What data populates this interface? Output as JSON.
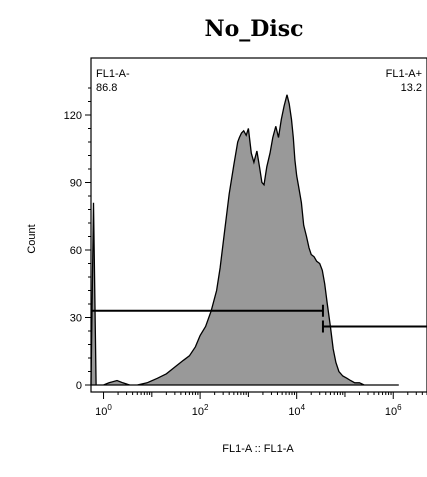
{
  "chart_data": {
    "type": "area",
    "title": "No_Disc",
    "xlabel": "FL1-A :: FL1-A",
    "ylabel": "Count",
    "x_scale": "log",
    "xlim": [
      0.55,
      5000000
    ],
    "ylim": [
      0,
      140
    ],
    "x_ticks": [
      {
        "value": 1,
        "base": "10",
        "exp": "0"
      },
      {
        "value": 100,
        "base": "10",
        "exp": "2"
      },
      {
        "value": 10000,
        "base": "10",
        "exp": "4"
      },
      {
        "value": 1000000,
        "base": "10",
        "exp": "6"
      }
    ],
    "y_ticks": [
      "0",
      "30",
      "60",
      "90",
      "120"
    ],
    "y_tick_values": [
      0,
      30,
      60,
      90,
      120
    ],
    "fill_color": "#999999",
    "histogram": {
      "x": [
        0.55,
        0.62,
        0.7,
        1.0,
        1.3,
        1.9,
        2.5,
        3.5,
        5,
        8,
        13,
        20,
        30,
        45,
        60,
        80,
        100,
        130,
        170,
        220,
        260,
        320,
        400,
        500,
        600,
        650,
        720,
        800,
        900,
        1000,
        1150,
        1300,
        1500,
        1700,
        1900,
        2100,
        2400,
        2800,
        3200,
        3700,
        4200,
        4800,
        5500,
        6300,
        7000,
        7800,
        8500,
        9200,
        10000,
        11000,
        12500,
        14000,
        16000,
        18000,
        20000,
        23000,
        26000,
        30000,
        34000,
        38000,
        43000,
        50000,
        57000,
        65000,
        75000,
        90000,
        110000,
        130000,
        160000,
        200000,
        250000,
        320000,
        400000,
        500000,
        600000,
        700000,
        800000,
        900000,
        1000000,
        1150000,
        1300000
      ],
      "y": [
        0,
        81,
        0,
        0,
        1,
        2,
        1,
        0,
        0,
        1,
        3,
        5,
        8,
        11,
        13,
        17,
        22,
        26,
        33,
        42,
        52,
        68,
        85,
        98,
        108,
        110,
        112,
        113,
        111,
        114,
        103,
        99,
        104,
        97,
        90,
        89,
        97,
        103,
        110,
        115,
        110,
        118,
        124,
        129,
        125,
        118,
        110,
        100,
        93,
        88,
        81,
        71,
        66,
        61,
        58,
        57,
        55,
        54,
        51,
        45,
        36,
        26,
        16,
        10,
        6,
        4,
        3,
        2,
        1,
        1,
        0,
        0,
        0,
        0,
        0,
        0,
        0,
        0,
        0,
        0,
        0
      ]
    },
    "gates": [
      {
        "name": "FL1-A-",
        "value": "86.8",
        "x_range": [
          0.55,
          35000
        ],
        "y": 33,
        "label_position": "top-left"
      },
      {
        "name": "FL1-A+",
        "value": "13.2",
        "x_range": [
          35000,
          5000000
        ],
        "y": 26,
        "label_position": "top-right"
      }
    ],
    "grid": false,
    "legend": "none"
  }
}
